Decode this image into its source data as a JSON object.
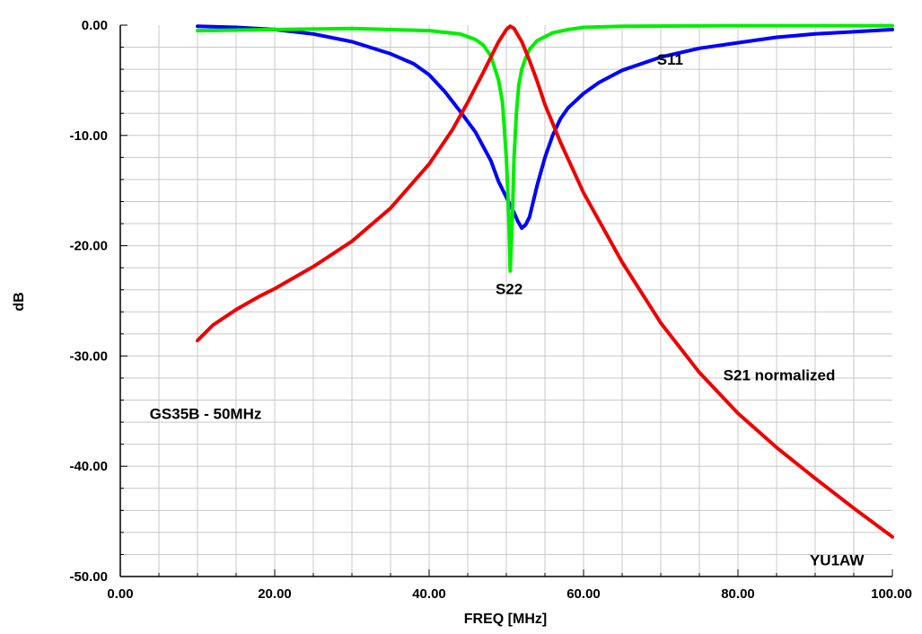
{
  "chart_data": {
    "type": "line",
    "title": "",
    "xlabel": "FREQ [MHz]",
    "ylabel": "dB",
    "xlim": [
      0,
      100
    ],
    "ylim": [
      -50,
      0
    ],
    "grid": true,
    "legend": "none",
    "x_ticks": [
      "0.00",
      "20.00",
      "40.00",
      "60.00",
      "80.00",
      "100.00"
    ],
    "x_tick_values": [
      0,
      20,
      40,
      60,
      80,
      100
    ],
    "y_ticks": [
      "0.00",
      "-10.00",
      "-20.00",
      "-30.00",
      "-40.00",
      "-50.00"
    ],
    "y_tick_values": [
      0,
      -10,
      -20,
      -30,
      -40,
      -50
    ],
    "series": [
      {
        "name": "S11",
        "color": "#0000ff",
        "x": [
          10,
          15,
          20,
          25,
          30,
          35,
          38,
          40,
          42,
          44,
          46,
          47,
          48,
          49,
          50,
          50.5,
          51,
          51.5,
          52,
          52.5,
          53,
          54,
          55,
          56,
          57,
          58,
          60,
          62,
          65,
          70,
          75,
          80,
          85,
          90,
          95,
          100
        ],
        "y": [
          -0.1,
          -0.2,
          -0.4,
          -0.8,
          -1.5,
          -2.6,
          -3.5,
          -4.5,
          -6,
          -7.8,
          -9.7,
          -11,
          -12.3,
          -14.2,
          -15.6,
          -16.3,
          -17,
          -17.8,
          -18.4,
          -18.1,
          -17.4,
          -14.5,
          -12,
          -10,
          -8.5,
          -7.5,
          -6.2,
          -5.2,
          -4.1,
          -2.9,
          -2.1,
          -1.6,
          -1.1,
          -0.8,
          -0.6,
          -0.4
        ]
      },
      {
        "name": "S22",
        "color": "#00ee00",
        "x": [
          10,
          20,
          30,
          40,
          44,
          46,
          47,
          48,
          49,
          49.5,
          50,
          50.3,
          50.5,
          50.8,
          51,
          51.3,
          51.6,
          52,
          52.5,
          53,
          54,
          56,
          58,
          60,
          65,
          80,
          100
        ],
        "y": [
          -0.5,
          -0.4,
          -0.3,
          -0.5,
          -0.8,
          -1.3,
          -1.8,
          -2.8,
          -5,
          -7,
          -12,
          -17,
          -22.3,
          -17,
          -12,
          -8,
          -5.5,
          -4,
          -3,
          -2.2,
          -1.4,
          -0.7,
          -0.4,
          -0.2,
          -0.1,
          -0.05,
          -0.05
        ]
      },
      {
        "name": "S21 normalized",
        "color": "#ee0000",
        "x": [
          10,
          12,
          15,
          18,
          20,
          25,
          30,
          35,
          40,
          43,
          45,
          47,
          48,
          49,
          50,
          50.5,
          51,
          52,
          53,
          54,
          55,
          57,
          60,
          65,
          70,
          75,
          80,
          85,
          90,
          95,
          100
        ],
        "y": [
          -28.6,
          -27.2,
          -25.8,
          -24.6,
          -23.9,
          -21.9,
          -19.6,
          -16.6,
          -12.6,
          -9.5,
          -7,
          -4.3,
          -2.9,
          -1.5,
          -0.4,
          -0.1,
          -0.3,
          -1.5,
          -3.2,
          -5.1,
          -7.2,
          -10.6,
          -15.2,
          -21.5,
          -27,
          -31.5,
          -35.2,
          -38.3,
          -41.1,
          -43.8,
          -46.4
        ]
      }
    ],
    "annotations": [
      {
        "text": "S11",
        "x": 69.5,
        "y": -3.6
      },
      {
        "text": "S22",
        "x": 48.6,
        "y": -24.4
      },
      {
        "text": "S21 normalized",
        "x": 78.1,
        "y": -32.2
      },
      {
        "text": "GS35B - 50MHz",
        "x": 3.8,
        "y": -35.7
      },
      {
        "text": "YU1AW",
        "x": 89.3,
        "y": -49.0
      }
    ]
  }
}
